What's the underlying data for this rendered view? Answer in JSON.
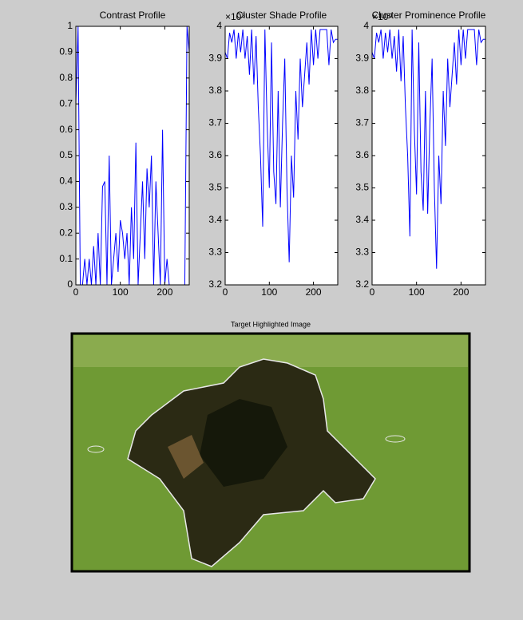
{
  "chart_data": [
    {
      "type": "line",
      "title": "Contrast Profile",
      "color": "#0000ff",
      "xlim": [
        0,
        255
      ],
      "xticks": [
        0,
        100,
        200
      ],
      "ylim": [
        0,
        1
      ],
      "yticks": [
        0,
        0.1,
        0.2,
        0.3,
        0.4,
        0.5,
        0.6,
        0.7,
        0.8,
        0.9,
        1
      ],
      "x": [
        0,
        5,
        10,
        15,
        20,
        25,
        30,
        35,
        40,
        45,
        50,
        55,
        60,
        65,
        70,
        75,
        80,
        85,
        90,
        95,
        100,
        105,
        110,
        115,
        120,
        125,
        130,
        135,
        140,
        145,
        150,
        155,
        160,
        165,
        170,
        175,
        180,
        185,
        190,
        195,
        200,
        205,
        210,
        215,
        220,
        225,
        230,
        235,
        240,
        245,
        250,
        255
      ],
      "values": [
        0.7,
        1,
        0,
        0,
        0.1,
        0,
        0.1,
        0,
        0.15,
        0,
        0.2,
        0,
        0.38,
        0.4,
        0,
        0.5,
        0,
        0.1,
        0.2,
        0.05,
        0.25,
        0.2,
        0.1,
        0.2,
        0,
        0.3,
        0.1,
        0.55,
        0,
        0.2,
        0.4,
        0.1,
        0.45,
        0.3,
        0.5,
        0,
        0.4,
        0.2,
        0,
        0.6,
        0,
        0.1,
        0,
        0,
        0,
        0,
        0,
        0,
        0,
        0,
        1,
        0.9
      ]
    },
    {
      "type": "line",
      "title": "Cluster Shade Profile",
      "axis_multiplier": "×10⁸",
      "color": "#0000ff",
      "xlim": [
        0,
        255
      ],
      "xticks": [
        0,
        100,
        200
      ],
      "ylim": [
        3.2,
        4
      ],
      "yticks": [
        3.2,
        3.3,
        3.4,
        3.5,
        3.6,
        3.7,
        3.8,
        3.9,
        4
      ],
      "x": [
        0,
        5,
        10,
        15,
        20,
        25,
        30,
        35,
        40,
        45,
        50,
        55,
        60,
        65,
        70,
        75,
        80,
        85,
        90,
        95,
        100,
        105,
        110,
        115,
        120,
        125,
        130,
        135,
        140,
        145,
        150,
        155,
        160,
        165,
        170,
        175,
        180,
        185,
        190,
        195,
        200,
        205,
        210,
        215,
        220,
        225,
        230,
        235,
        240,
        245,
        250,
        255
      ],
      "values": [
        3.92,
        3.9,
        3.98,
        3.95,
        3.99,
        3.9,
        3.98,
        3.92,
        3.99,
        3.9,
        3.97,
        3.85,
        3.99,
        3.82,
        3.97,
        3.75,
        3.6,
        3.38,
        3.99,
        3.7,
        3.5,
        3.95,
        3.55,
        3.45,
        3.8,
        3.44,
        3.7,
        3.9,
        3.5,
        3.27,
        3.6,
        3.47,
        3.8,
        3.65,
        3.9,
        3.75,
        3.85,
        3.95,
        3.82,
        3.99,
        3.88,
        3.99,
        3.9,
        3.99,
        3.99,
        3.99,
        3.99,
        3.88,
        3.99,
        3.95,
        3.96,
        3.96
      ]
    },
    {
      "type": "line",
      "title": "Cluster Prominence Profile",
      "axis_multiplier": "×10⁹",
      "color": "#0000ff",
      "xlim": [
        0,
        255
      ],
      "xticks": [
        0,
        100,
        200
      ],
      "ylim": [
        3.2,
        4
      ],
      "yticks": [
        3.2,
        3.3,
        3.4,
        3.5,
        3.6,
        3.7,
        3.8,
        3.9,
        4
      ],
      "x": [
        0,
        5,
        10,
        15,
        20,
        25,
        30,
        35,
        40,
        45,
        50,
        55,
        60,
        65,
        70,
        75,
        80,
        85,
        90,
        95,
        100,
        105,
        110,
        115,
        120,
        125,
        130,
        135,
        140,
        145,
        150,
        155,
        160,
        165,
        170,
        175,
        180,
        185,
        190,
        195,
        200,
        205,
        210,
        215,
        220,
        225,
        230,
        235,
        240,
        245,
        250,
        255
      ],
      "values": [
        3.92,
        3.9,
        3.98,
        3.95,
        3.99,
        3.9,
        3.98,
        3.92,
        3.99,
        3.9,
        3.97,
        3.86,
        3.99,
        3.83,
        3.97,
        3.75,
        3.6,
        3.35,
        3.99,
        3.68,
        3.48,
        3.95,
        3.55,
        3.43,
        3.8,
        3.42,
        3.7,
        3.9,
        3.5,
        3.25,
        3.6,
        3.45,
        3.8,
        3.63,
        3.9,
        3.75,
        3.85,
        3.95,
        3.82,
        3.99,
        3.88,
        3.99,
        3.9,
        3.99,
        3.99,
        3.99,
        3.99,
        3.88,
        3.99,
        3.95,
        3.96,
        3.96
      ]
    }
  ],
  "image_panel": {
    "title": "Target Highlighted Image"
  }
}
